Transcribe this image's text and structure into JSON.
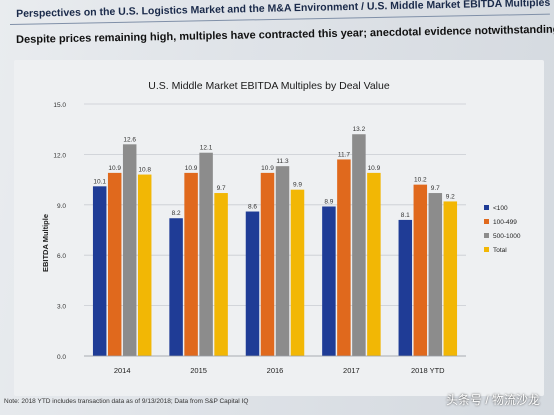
{
  "header": {
    "title": "Perspectives on the U.S. Logistics Market and the M&A Environment / U.S. Middle Market EBITDA Multiples",
    "subtitle": "Despite prices remaining high, multiples have contracted this year; anecdotal evidence notwithstanding"
  },
  "footnote": "Note: 2018 YTD includes transaction data as of 9/13/2018; Data from S&P Capital IQ",
  "watermark": "头条号 / 物流沙龙",
  "colors": {
    "lt100": "#1f3c96",
    "r100_499": "#e0691d",
    "r500_1000": "#8c8c8c",
    "total": "#f2b705"
  },
  "chart_data": {
    "type": "bar",
    "title": "U.S. Middle Market EBITDA Multiples by Deal Value",
    "xlabel": "",
    "ylabel": "EBITDA Multiple",
    "ylim": [
      0,
      15
    ],
    "yticks": [
      "0.0",
      "3.0",
      "6.0",
      "9.0",
      "12.0",
      "15.0"
    ],
    "grid": true,
    "legend_position": "right",
    "categories": [
      "2014",
      "2015",
      "2016",
      "2017",
      "2018 YTD"
    ],
    "series": [
      {
        "name": "<100",
        "color": "#1f3c96",
        "values": [
          10.1,
          8.2,
          8.6,
          8.9,
          8.1
        ],
        "labels": [
          "10.1",
          "8.2",
          "8.6",
          "8.9",
          "8.1"
        ]
      },
      {
        "name": "100-499",
        "color": "#e0691d",
        "values": [
          10.9,
          10.9,
          10.9,
          11.7,
          10.2
        ],
        "labels": [
          "10.9",
          "10.9",
          "10.9",
          "11.7",
          "10.2"
        ]
      },
      {
        "name": "500-1000",
        "color": "#8c8c8c",
        "values": [
          12.6,
          12.1,
          11.3,
          13.2,
          9.7
        ],
        "labels": [
          "12.6",
          "12.1",
          "11.3",
          "13.2",
          "9.7"
        ]
      },
      {
        "name": "Total",
        "color": "#f2b705",
        "values": [
          10.8,
          9.7,
          9.9,
          10.9,
          9.2
        ],
        "labels": [
          "10.8",
          "9.7",
          "9.9",
          "10.9",
          "9.2"
        ]
      }
    ]
  }
}
